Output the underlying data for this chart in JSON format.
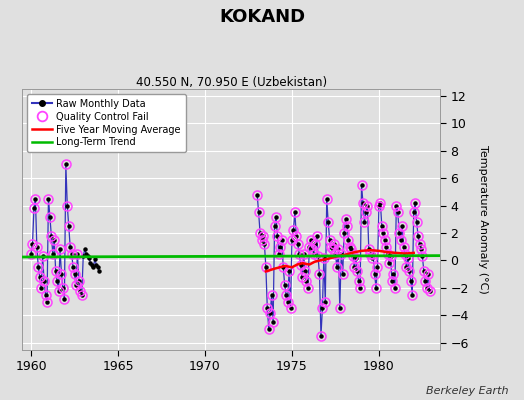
{
  "title": "KOKAND",
  "subtitle": "40.550 N, 70.950 E (Uzbekistan)",
  "ylabel": "Temperature Anomaly (°C)",
  "attribution": "Berkeley Earth",
  "xlim": [
    1959.5,
    1983.5
  ],
  "ylim": [
    -6.5,
    12.5
  ],
  "yticks": [
    -6,
    -4,
    -2,
    0,
    2,
    4,
    6,
    8,
    10,
    12
  ],
  "xticks": [
    1960,
    1965,
    1970,
    1975,
    1980
  ],
  "bg_color": "#e0e0e0",
  "grid_color": "#ffffff",
  "raw_line_color": "#3333bb",
  "raw_marker_color": "#000000",
  "qc_fail_color": "#ff44ff",
  "moving_avg_color": "#ff0000",
  "trend_color": "#00bb00",
  "segments": [
    {
      "x": [
        1960.0,
        1960.083,
        1960.167,
        1960.25,
        1960.333,
        1960.417,
        1960.5,
        1960.583,
        1960.667,
        1960.75,
        1960.833,
        1960.917,
        1961.0,
        1961.083,
        1961.167,
        1961.25,
        1961.333,
        1961.417,
        1961.5,
        1961.583,
        1961.667,
        1961.75,
        1961.833,
        1961.917,
        1962.0,
        1962.083,
        1962.167,
        1962.25,
        1962.333,
        1962.417,
        1962.5,
        1962.583,
        1962.667,
        1962.75,
        1962.833,
        1962.917,
        1963.0,
        1963.083,
        1963.167,
        1963.25,
        1963.333,
        1963.417,
        1963.5,
        1963.583,
        1963.667,
        1963.75,
        1963.833,
        1963.917
      ],
      "y": [
        0.5,
        1.2,
        3.8,
        4.5,
        1.0,
        -0.5,
        -1.2,
        -2.0,
        0.3,
        -1.5,
        -2.5,
        -3.0,
        4.5,
        3.2,
        1.8,
        0.5,
        1.5,
        -0.8,
        -1.5,
        -2.2,
        0.8,
        -1.0,
        -2.0,
        -2.8,
        7.0,
        4.0,
        2.5,
        1.0,
        0.5,
        -0.5,
        -1.0,
        -1.8,
        0.5,
        -1.5,
        -2.2,
        -2.5,
        0.3,
        0.8,
        0.5,
        0.3,
        0.2,
        -0.2,
        -0.3,
        -0.5,
        0.1,
        -0.3,
        -0.5,
        -0.8
      ],
      "qc_fail": [
        true,
        true,
        true,
        true,
        true,
        true,
        true,
        true,
        true,
        true,
        true,
        true,
        true,
        true,
        true,
        true,
        true,
        true,
        true,
        true,
        true,
        true,
        true,
        true,
        true,
        true,
        true,
        true,
        true,
        true,
        true,
        true,
        true,
        true,
        true,
        true,
        false,
        false,
        false,
        false,
        false,
        false,
        false,
        false,
        false,
        false,
        false,
        false
      ]
    },
    {
      "x": [
        1973.0,
        1973.083,
        1973.167,
        1973.25,
        1973.333,
        1973.417,
        1973.5,
        1973.583,
        1973.667,
        1973.75,
        1973.833,
        1973.917,
        1974.0,
        1974.083,
        1974.167,
        1974.25,
        1974.333,
        1974.417,
        1974.5,
        1974.583,
        1974.667,
        1974.75,
        1974.833,
        1974.917,
        1975.0,
        1975.083,
        1975.167,
        1975.25,
        1975.333,
        1975.417,
        1975.5,
        1975.583,
        1975.667,
        1975.75,
        1975.833,
        1975.917,
        1976.0,
        1976.083,
        1976.167,
        1976.25,
        1976.333,
        1976.417,
        1976.5,
        1976.583,
        1976.667,
        1976.75,
        1976.833,
        1976.917,
        1977.0,
        1977.083,
        1977.167,
        1977.25,
        1977.333,
        1977.417,
        1977.5,
        1977.583,
        1977.667,
        1977.75,
        1977.833,
        1977.917,
        1978.0,
        1978.083,
        1978.167,
        1978.25,
        1978.333,
        1978.417,
        1978.5,
        1978.583,
        1978.667,
        1978.75,
        1978.833,
        1978.917,
        1979.0,
        1979.083,
        1979.167,
        1979.25,
        1979.333,
        1979.417,
        1979.5,
        1979.583,
        1979.667,
        1979.75,
        1979.833,
        1979.917,
        1980.0,
        1980.083,
        1980.167,
        1980.25,
        1980.333,
        1980.417,
        1980.5,
        1980.583,
        1980.667,
        1980.75,
        1980.833,
        1980.917,
        1981.0,
        1981.083,
        1981.167,
        1981.25,
        1981.333,
        1981.417,
        1981.5,
        1981.583,
        1981.667,
        1981.75,
        1981.833,
        1981.917,
        1982.0,
        1982.083,
        1982.167,
        1982.25,
        1982.333,
        1982.417,
        1982.5,
        1982.583,
        1982.667,
        1982.75,
        1982.833,
        1982.917
      ],
      "y": [
        4.8,
        3.5,
        2.0,
        1.5,
        1.8,
        1.2,
        -0.5,
        -3.5,
        -5.0,
        -3.8,
        -2.5,
        -4.5,
        2.5,
        3.2,
        1.8,
        0.5,
        1.0,
        1.5,
        -0.5,
        -1.8,
        -2.5,
        -3.0,
        -0.8,
        -3.5,
        1.5,
        2.2,
        3.5,
        1.8,
        1.2,
        0.5,
        -0.3,
        -1.2,
        0.5,
        -0.8,
        -1.5,
        -2.0,
        1.0,
        1.5,
        0.8,
        0.5,
        1.2,
        1.8,
        0.3,
        -1.0,
        -5.5,
        -3.5,
        0.2,
        -3.0,
        4.5,
        2.8,
        1.5,
        1.0,
        0.8,
        1.2,
        0.5,
        -0.5,
        0.8,
        -3.5,
        0.5,
        -1.0,
        2.0,
        3.0,
        2.5,
        1.5,
        1.0,
        0.8,
        0.3,
        -0.5,
        0.2,
        -0.8,
        -1.5,
        -2.0,
        5.5,
        4.2,
        2.8,
        3.5,
        4.0,
        0.8,
        0.5,
        0.2,
        0.5,
        -1.0,
        -2.0,
        -0.5,
        4.0,
        4.2,
        2.5,
        2.0,
        1.5,
        1.0,
        0.5,
        -0.2,
        0.3,
        -1.5,
        -1.0,
        -2.0,
        4.0,
        3.5,
        2.0,
        1.5,
        2.5,
        1.0,
        0.5,
        -0.5,
        0.2,
        -0.8,
        -1.5,
        -2.5,
        3.5,
        4.2,
        2.8,
        1.8,
        1.2,
        0.8,
        0.3,
        -0.8,
        -1.5,
        -2.0,
        -1.0,
        -2.2
      ],
      "qc_fail": [
        true,
        true,
        true,
        true,
        true,
        true,
        true,
        true,
        true,
        true,
        true,
        true,
        true,
        true,
        true,
        true,
        true,
        true,
        true,
        true,
        true,
        true,
        true,
        true,
        true,
        true,
        true,
        true,
        true,
        true,
        true,
        true,
        true,
        true,
        true,
        true,
        true,
        true,
        true,
        true,
        true,
        true,
        true,
        true,
        true,
        true,
        true,
        true,
        true,
        true,
        true,
        true,
        true,
        true,
        true,
        true,
        true,
        true,
        true,
        true,
        true,
        true,
        true,
        true,
        true,
        true,
        true,
        true,
        true,
        true,
        true,
        true,
        true,
        true,
        true,
        true,
        true,
        true,
        true,
        true,
        true,
        true,
        true,
        true,
        true,
        true,
        true,
        true,
        true,
        true,
        true,
        true,
        true,
        true,
        true,
        true,
        true,
        true,
        true,
        true,
        true,
        true,
        true,
        true,
        true,
        true,
        true,
        true,
        true,
        true,
        true,
        true,
        true,
        true,
        true,
        true,
        true,
        true,
        true,
        true
      ]
    }
  ],
  "moving_avg_x": [
    1973.5,
    1974.0,
    1974.3,
    1974.6,
    1975.0,
    1975.3,
    1975.6,
    1976.0,
    1976.3,
    1976.6,
    1977.0,
    1977.3,
    1977.6,
    1978.0,
    1978.3,
    1978.6,
    1979.0,
    1979.5,
    1980.0,
    1980.5,
    1981.0,
    1981.5,
    1982.0
  ],
  "moving_avg_y": [
    -0.8,
    -0.6,
    -0.5,
    -0.4,
    -0.5,
    -0.3,
    -0.2,
    -0.3,
    -0.1,
    0.0,
    0.1,
    0.2,
    0.3,
    0.4,
    0.5,
    0.6,
    0.7,
    0.75,
    0.7,
    0.6,
    0.55,
    0.5,
    0.55
  ],
  "trend_x": [
    1959.5,
    1983.5
  ],
  "trend_y": [
    0.25,
    0.35
  ]
}
